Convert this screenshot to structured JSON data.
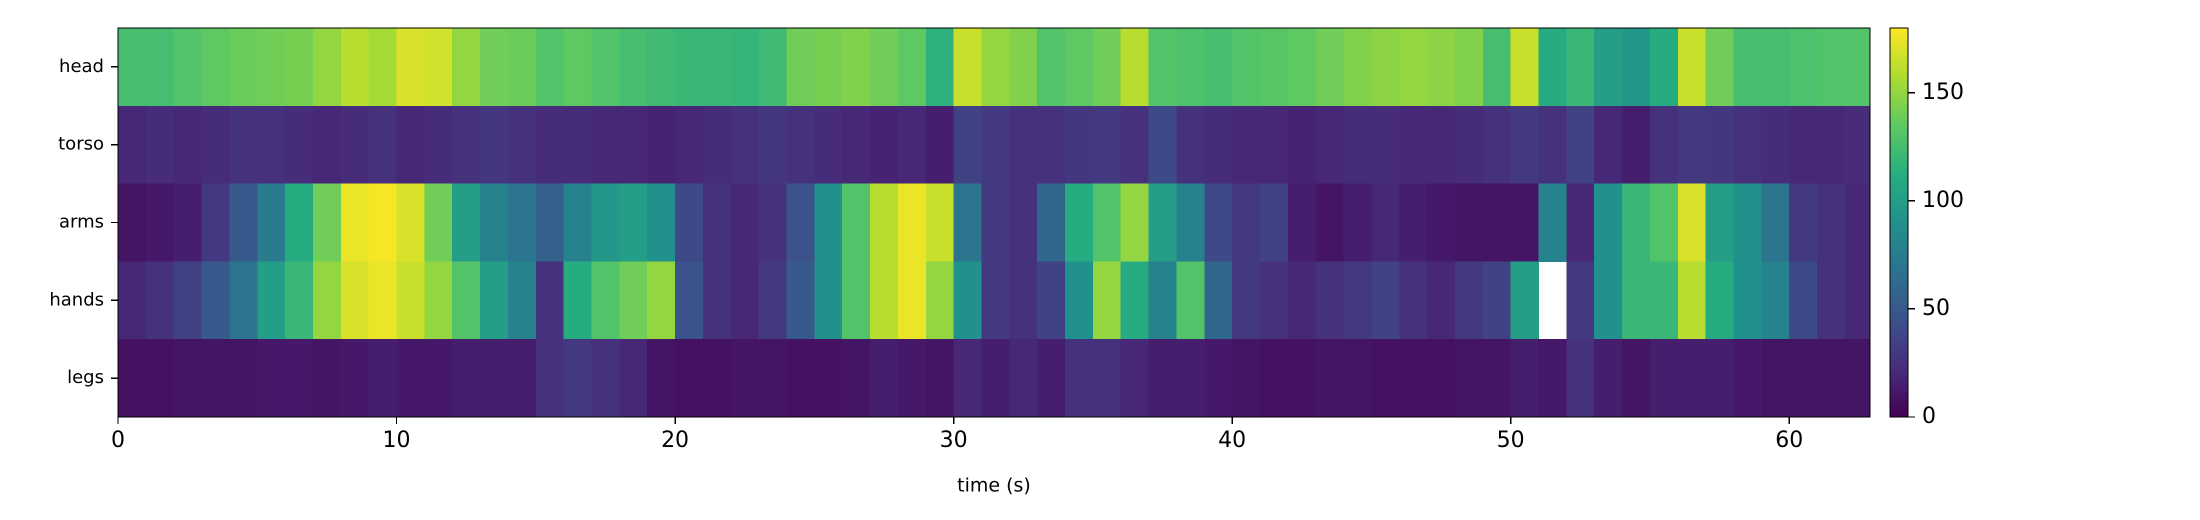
{
  "chart_data": {
    "type": "heatmap",
    "xlabel": "time (s)",
    "colormap": "viridis",
    "rows": [
      "head",
      "torso",
      "arms",
      "hands",
      "legs"
    ],
    "bins": [
      0,
      1,
      2,
      3,
      4,
      5,
      6,
      7,
      8,
      9,
      10,
      11,
      12,
      13,
      14,
      15,
      16,
      17,
      18,
      19,
      20,
      21,
      22,
      23,
      24,
      25,
      26,
      27,
      28,
      29,
      30,
      31,
      32,
      33,
      34,
      35,
      36,
      37,
      38,
      39,
      40,
      41,
      42,
      43,
      44,
      45,
      46,
      47,
      48,
      49,
      50,
      51,
      52,
      53,
      54,
      55,
      56,
      57,
      58,
      59,
      60,
      61,
      62,
      62.9
    ],
    "values": [
      [
        125,
        125,
        130,
        135,
        138,
        140,
        142,
        150,
        160,
        155,
        170,
        168,
        150,
        140,
        138,
        130,
        135,
        130,
        125,
        122,
        120,
        120,
        118,
        122,
        140,
        142,
        145,
        140,
        135,
        115,
        165,
        150,
        145,
        130,
        135,
        140,
        160,
        130,
        128,
        125,
        130,
        132,
        135,
        140,
        145,
        148,
        150,
        148,
        145,
        125,
        165,
        110,
        120,
        100,
        95,
        110,
        165,
        140,
        125,
        125,
        128,
        130,
        130
      ],
      [
        20,
        22,
        20,
        22,
        25,
        25,
        22,
        20,
        22,
        25,
        20,
        22,
        25,
        28,
        25,
        22,
        22,
        20,
        20,
        18,
        20,
        22,
        25,
        28,
        25,
        22,
        20,
        18,
        20,
        15,
        35,
        30,
        25,
        25,
        28,
        30,
        25,
        40,
        25,
        22,
        20,
        20,
        18,
        20,
        22,
        22,
        20,
        20,
        22,
        25,
        30,
        25,
        35,
        20,
        15,
        25,
        30,
        28,
        25,
        22,
        20,
        20,
        22
      ],
      [
        10,
        12,
        15,
        30,
        50,
        75,
        110,
        140,
        175,
        178,
        170,
        140,
        100,
        80,
        70,
        55,
        80,
        95,
        100,
        90,
        40,
        25,
        20,
        25,
        45,
        90,
        130,
        160,
        175,
        165,
        70,
        30,
        25,
        60,
        110,
        130,
        150,
        100,
        80,
        40,
        30,
        35,
        15,
        10,
        15,
        20,
        15,
        12,
        10,
        10,
        10,
        80,
        20,
        90,
        120,
        130,
        170,
        100,
        90,
        70,
        30,
        25,
        20
      ],
      [
        20,
        25,
        35,
        50,
        70,
        100,
        120,
        150,
        170,
        175,
        165,
        150,
        130,
        100,
        80,
        25,
        110,
        130,
        140,
        150,
        45,
        25,
        20,
        30,
        50,
        90,
        130,
        160,
        175,
        150,
        90,
        30,
        25,
        35,
        90,
        150,
        110,
        80,
        130,
        60,
        30,
        25,
        20,
        25,
        30,
        35,
        25,
        20,
        30,
        35,
        100,
        null,
        30,
        90,
        120,
        120,
        160,
        110,
        90,
        80,
        40,
        25,
        20
      ],
      [
        8,
        8,
        10,
        10,
        10,
        12,
        12,
        10,
        12,
        15,
        12,
        12,
        15,
        15,
        15,
        25,
        30,
        25,
        20,
        10,
        8,
        8,
        10,
        10,
        8,
        8,
        10,
        15,
        12,
        10,
        20,
        15,
        20,
        15,
        25,
        25,
        20,
        15,
        15,
        12,
        10,
        8,
        8,
        10,
        10,
        8,
        8,
        8,
        10,
        10,
        15,
        12,
        25,
        15,
        10,
        15,
        15,
        15,
        12,
        10,
        10,
        10,
        10
      ]
    ],
    "xlim": [
      0,
      62.9
    ],
    "xticks": [
      0,
      10,
      20,
      30,
      40,
      50,
      60
    ],
    "clim": [
      0,
      180
    ],
    "cticks": [
      0,
      50,
      100,
      150
    ]
  }
}
